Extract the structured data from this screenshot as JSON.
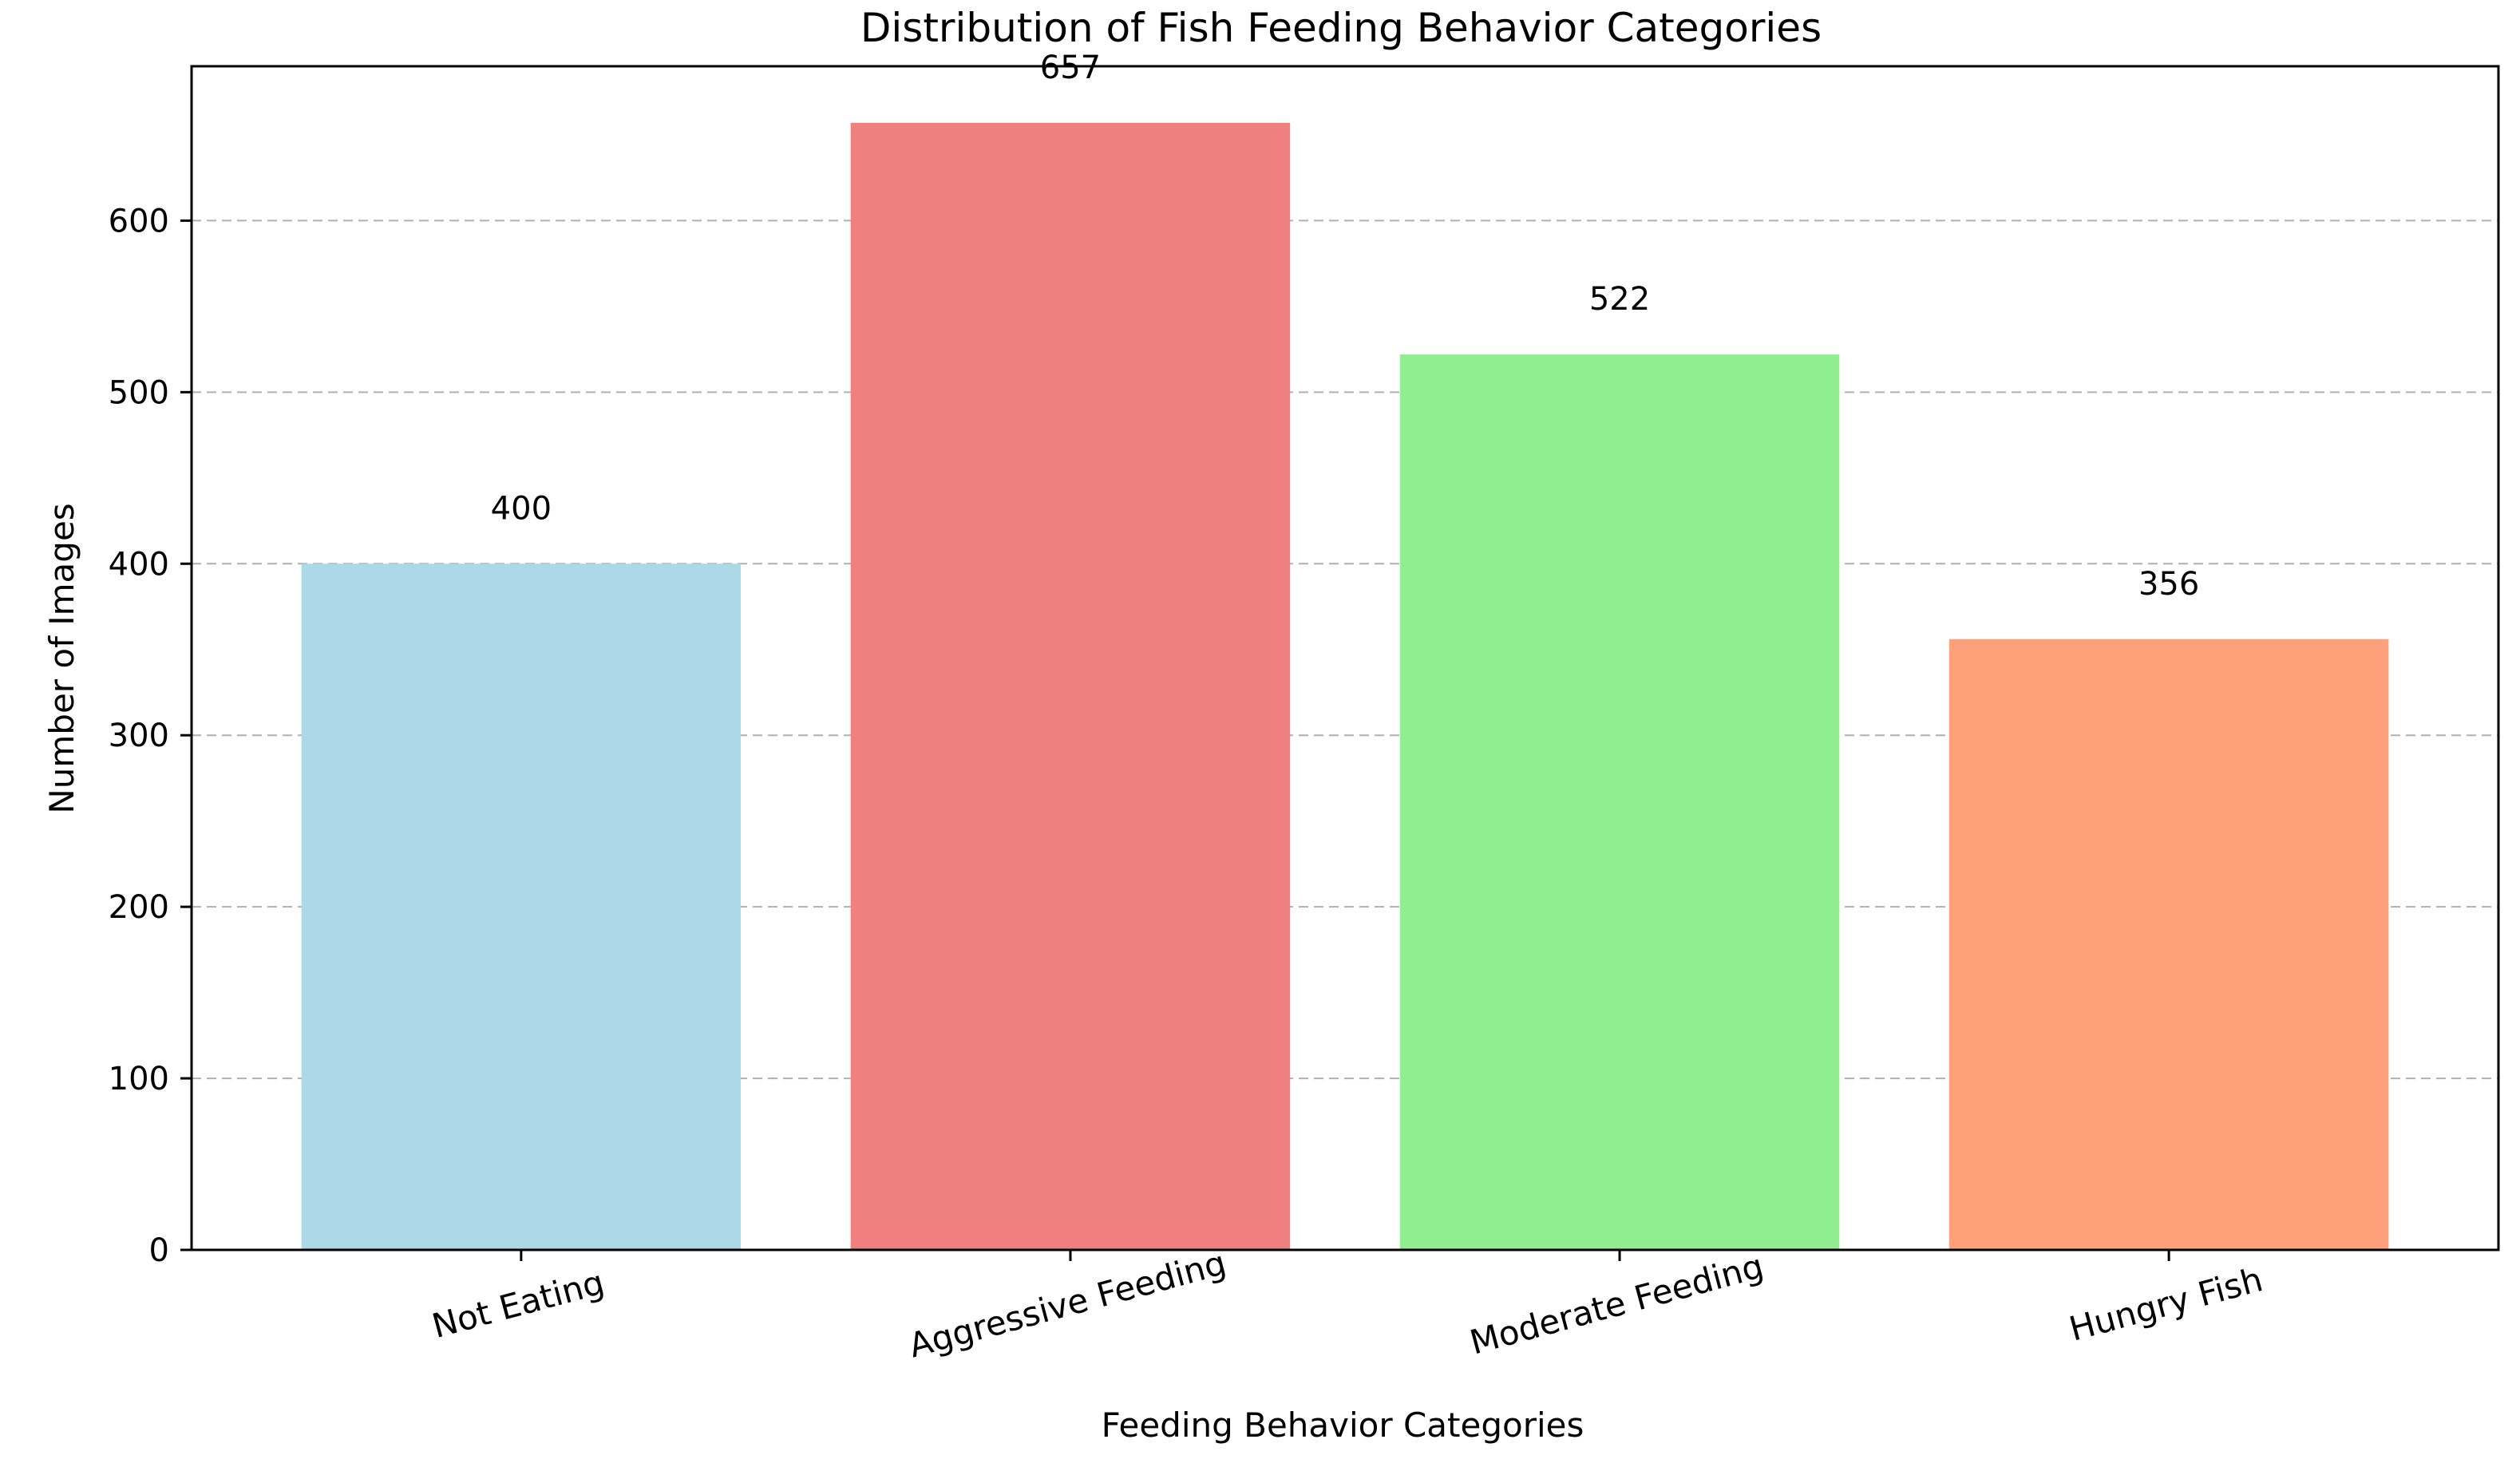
{
  "chart_data": {
    "type": "bar",
    "title": "Distribution of Fish Feeding Behavior Categories",
    "xlabel": "Feeding Behavior Categories",
    "ylabel": "Number of Images",
    "categories": [
      "Not Eating",
      "Aggressive Feeding",
      "Moderate Feeding",
      "Hungry Fish"
    ],
    "values": [
      400,
      657,
      522,
      356
    ],
    "colors": [
      "#add8e6",
      "#f08080",
      "#90ee90",
      "#ffa07a"
    ],
    "ylim": [
      0,
      690
    ],
    "yticks": [
      0,
      100,
      200,
      300,
      400,
      500,
      600
    ],
    "grid": "y-dashed",
    "legend": "none"
  }
}
